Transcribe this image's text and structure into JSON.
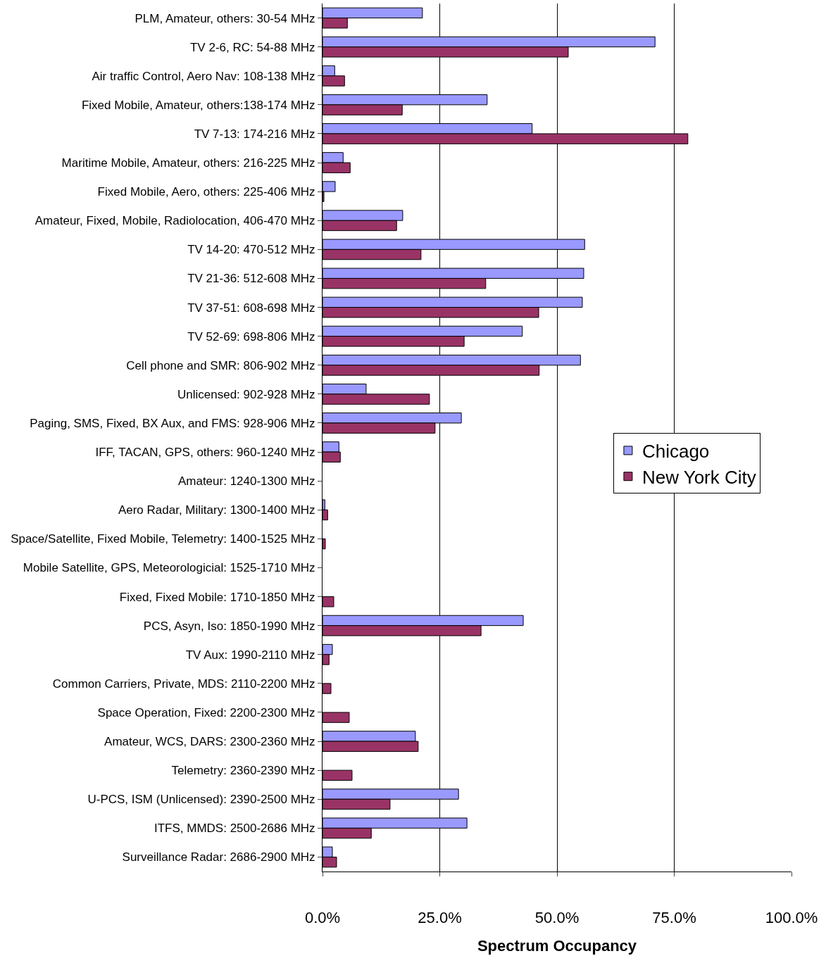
{
  "chart_data": {
    "type": "bar",
    "orientation": "horizontal",
    "xlabel": "Spectrum Occupancy",
    "categories": [
      "PLM, Amateur, others: 30-54 MHz",
      "TV 2-6, RC: 54-88 MHz",
      "Air traffic Control, Aero Nav: 108-138 MHz",
      "Fixed Mobile, Amateur, others:138-174 MHz",
      "TV 7-13: 174-216 MHz",
      "Maritime Mobile, Amateur, others: 216-225 MHz",
      "Fixed Mobile, Aero, others: 225-406 MHz",
      "Amateur, Fixed, Mobile, Radiolocation, 406-470 MHz",
      "TV 14-20: 470-512 MHz",
      "TV 21-36: 512-608 MHz",
      "TV 37-51: 608-698 MHz",
      "TV 52-69: 698-806 MHz",
      "Cell phone and SMR: 806-902 MHz",
      "Unlicensed: 902-928 MHz",
      "Paging, SMS, Fixed, BX Aux, and FMS: 928-906 MHz",
      "IFF, TACAN, GPS, others: 960-1240 MHz",
      "Amateur: 1240-1300 MHz",
      "Aero Radar, Military: 1300-1400 MHz",
      "Space/Satellite, Fixed Mobile, Telemetry: 1400-1525 MHz",
      "Mobile Satellite, GPS, Meteorologicial: 1525-1710 MHz",
      "Fixed, Fixed Mobile: 1710-1850 MHz",
      "PCS, Asyn, Iso: 1850-1990 MHz",
      "TV Aux: 1990-2110 MHz",
      "Common Carriers, Private, MDS: 2110-2200 MHz",
      "Space Operation, Fixed: 2200-2300 MHz",
      "Amateur, WCS, DARS: 2300-2360 MHz",
      "Telemetry: 2360-2390 MHz",
      "U-PCS, ISM (Unlicensed): 2390-2500 MHz",
      "ITFS, MMDS: 2500-2686 MHz",
      "Surveillance Radar: 2686-2900 MHz"
    ],
    "series": [
      {
        "name": "Chicago",
        "color": "#9999ff",
        "values": [
          21.3,
          70.9,
          2.6,
          35.1,
          44.7,
          4.4,
          2.7,
          17.1,
          55.9,
          55.7,
          55.4,
          42.6,
          55.0,
          9.3,
          29.6,
          3.5,
          null,
          0.5,
          null,
          null,
          null,
          42.8,
          2.1,
          null,
          null,
          19.8,
          null,
          29.0,
          30.8,
          2.1
        ]
      },
      {
        "name": "New York City",
        "color": "#993366",
        "values": [
          5.3,
          52.4,
          4.7,
          17.0,
          77.9,
          5.9,
          0.3,
          15.8,
          21.0,
          34.8,
          46.1,
          30.2,
          46.2,
          22.8,
          24.0,
          3.8,
          null,
          1.1,
          0.6,
          null,
          2.4,
          33.8,
          1.4,
          1.8,
          5.7,
          20.4,
          6.3,
          14.4,
          10.4,
          3.0
        ]
      }
    ],
    "xlim": [
      0,
      100
    ],
    "xticks": [
      {
        "value": 0,
        "label": "0.0%"
      },
      {
        "value": 25,
        "label": "25.0%"
      },
      {
        "value": 50,
        "label": "50.0%"
      },
      {
        "value": 75,
        "label": "75.0%"
      },
      {
        "value": 100,
        "label": "100.0%"
      }
    ],
    "grid": "x",
    "legend": "right"
  }
}
